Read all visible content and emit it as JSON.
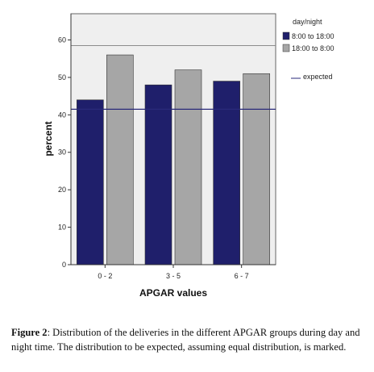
{
  "chart_data": {
    "type": "bar",
    "categories": [
      "0 - 2",
      "3 - 5",
      "6 - 7"
    ],
    "series": [
      {
        "name": "8:00 to 18:00",
        "values": [
          44,
          48,
          49
        ],
        "color": "#1f1f6b"
      },
      {
        "name": "18:00 to 8:00",
        "values": [
          56,
          52,
          51
        ],
        "color": "#a6a6a6"
      }
    ],
    "expected_line": {
      "name": "expected",
      "value": 41.5,
      "color": "#2a2a7a"
    },
    "xlabel": "APGAR values",
    "ylabel": "percent",
    "ylim": [
      0,
      67
    ],
    "yticks": [
      0,
      10,
      20,
      30,
      40,
      50,
      60
    ],
    "reference_line": {
      "value": 58.5,
      "color": "#8c8c8c"
    },
    "grid": false,
    "legend": {
      "title": "day/night",
      "placement": "right"
    },
    "plot_background": "#efefef"
  },
  "caption": {
    "label": "Figure 2",
    "text": ": Distribution of the deliveries in the different APGAR groups during day and night time. The distribution to be expected, assuming equal distribution, is marked."
  }
}
